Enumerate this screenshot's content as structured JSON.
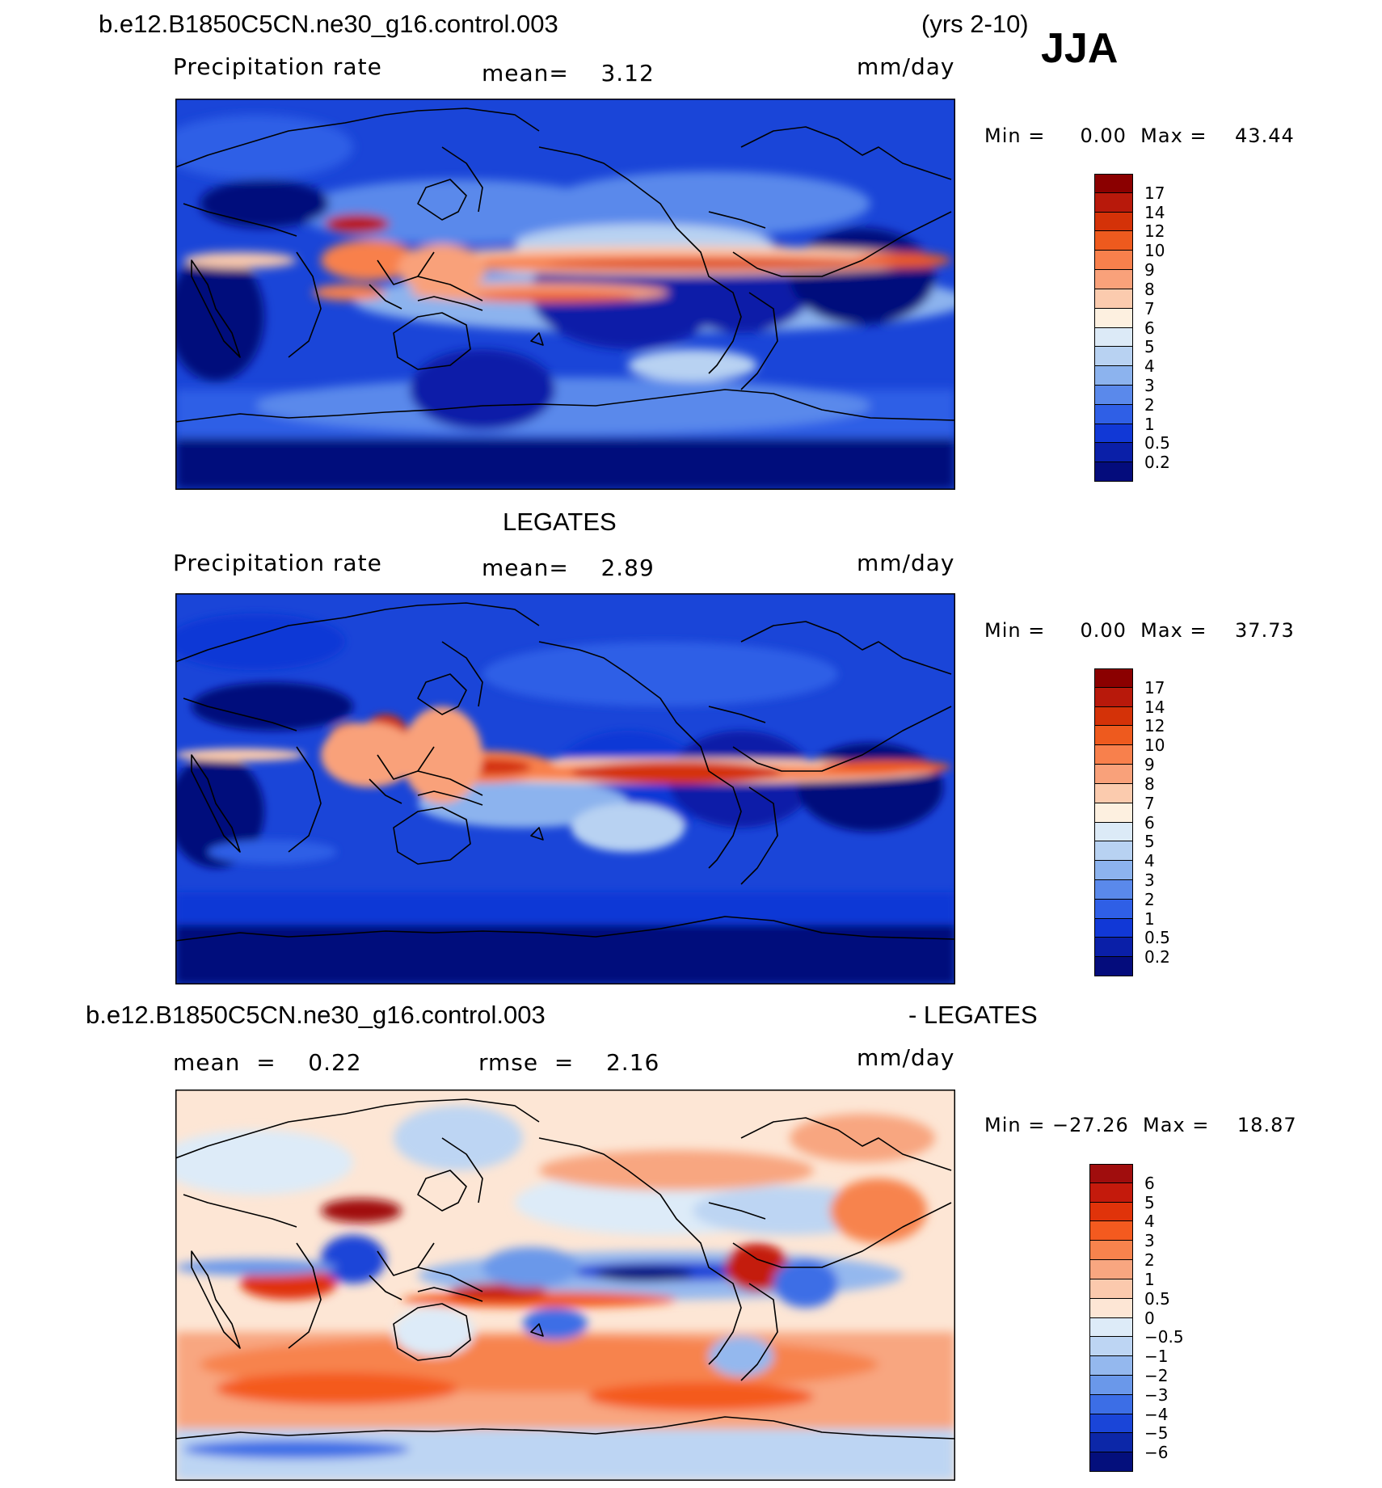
{
  "header": {
    "case_title": "b.e12.B1850C5CN.ne30_g16.control.003",
    "years": "(yrs 2-10)",
    "season": "JJA"
  },
  "panels": [
    {
      "id": "model",
      "title": "",
      "left_label": "Precipitation rate",
      "center_label": "mean=    3.12",
      "units": "mm/day",
      "minmax": "Min =     0.00  Max =    43.44"
    },
    {
      "id": "obs",
      "title": "LEGATES",
      "left_label": "Precipitation rate",
      "center_label": "mean=    2.89",
      "units": "mm/day",
      "minmax": "Min =     0.00  Max =    37.73"
    },
    {
      "id": "diff",
      "title_left": "b.e12.B1850C5CN.ne30_g16.control.003",
      "title_right": "- LEGATES",
      "left_label": "mean  =    0.22",
      "center_label": "rmse  =    2.16",
      "units": "mm/day",
      "minmax": "Min = −27.26  Max =    18.87"
    }
  ],
  "colorbars": {
    "precip": {
      "labels": [
        "17",
        "14",
        "12",
        "10",
        "9",
        "8",
        "7",
        "6",
        "5",
        "4",
        "3",
        "2",
        "1",
        "0.5",
        "0.2"
      ],
      "colors": [
        "#8b0000",
        "#b8190b",
        "#d43208",
        "#ee5a1e",
        "#f8804c",
        "#f9a17a",
        "#fbcbae",
        "#fdf0e0",
        "#dceaf7",
        "#b8d2f2",
        "#8cb3ee",
        "#5a89eb",
        "#2f5fe6",
        "#1138d6",
        "#0a1fa8",
        "#040c7c"
      ]
    },
    "diff": {
      "labels": [
        "6",
        "5",
        "4",
        "3",
        "2",
        "1",
        "0.5",
        "0",
        "−0.5",
        "−1",
        "−2",
        "−3",
        "−4",
        "−5",
        "−6"
      ],
      "colors": [
        "#a00d0d",
        "#c41a0c",
        "#e0330a",
        "#f45a1f",
        "#f7834d",
        "#f8a680",
        "#fbc9ad",
        "#fde6d5",
        "#ddebf8",
        "#bdd5f3",
        "#94b8ee",
        "#6a98ea",
        "#3c6ee6",
        "#1a45d8",
        "#0c27a8",
        "#040f7c"
      ]
    }
  }
}
